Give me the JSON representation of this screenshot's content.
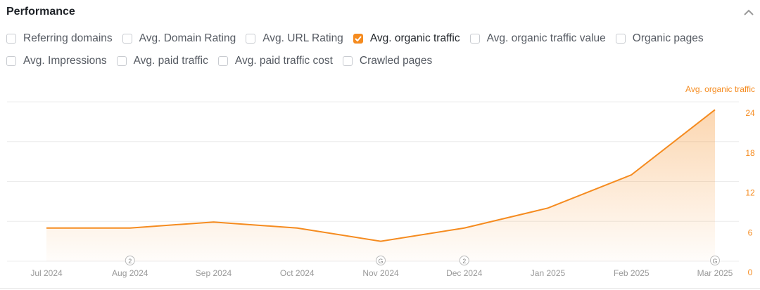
{
  "title": "Performance",
  "options_row1": [
    {
      "label": "Referring domains",
      "checked": false
    },
    {
      "label": "Avg. Domain Rating",
      "checked": false
    },
    {
      "label": "Avg. URL Rating",
      "checked": false
    },
    {
      "label": "Avg. organic traffic",
      "checked": true
    },
    {
      "label": "Avg. organic traffic value",
      "checked": false
    },
    {
      "label": "Organic pages",
      "checked": false
    }
  ],
  "options_row2": [
    {
      "label": "Avg. Impressions",
      "checked": false
    },
    {
      "label": "Avg. paid traffic",
      "checked": false
    },
    {
      "label": "Avg. paid traffic cost",
      "checked": false
    },
    {
      "label": "Crawled pages",
      "checked": false
    }
  ],
  "accent": "#f58b1f",
  "chart_data": {
    "type": "area",
    "series_label": "Avg. organic traffic",
    "categories": [
      "Jul 2024",
      "Aug 2024",
      "Sep 2024",
      "Oct 2024",
      "Nov 2024",
      "Dec 2024",
      "Jan 2025",
      "Feb 2025",
      "Mar 2025"
    ],
    "values": [
      5,
      5,
      5.9,
      5,
      3,
      5,
      8,
      13,
      22.8
    ],
    "yticks": [
      "0",
      "6",
      "12",
      "18",
      "24"
    ],
    "ylim": [
      0,
      24
    ],
    "markers": [
      {
        "category": "Aug 2024",
        "text": "2"
      },
      {
        "category": "Nov 2024",
        "text": "G"
      },
      {
        "category": "Dec 2024",
        "text": "2"
      },
      {
        "category": "Mar 2025",
        "text": "G"
      }
    ]
  }
}
